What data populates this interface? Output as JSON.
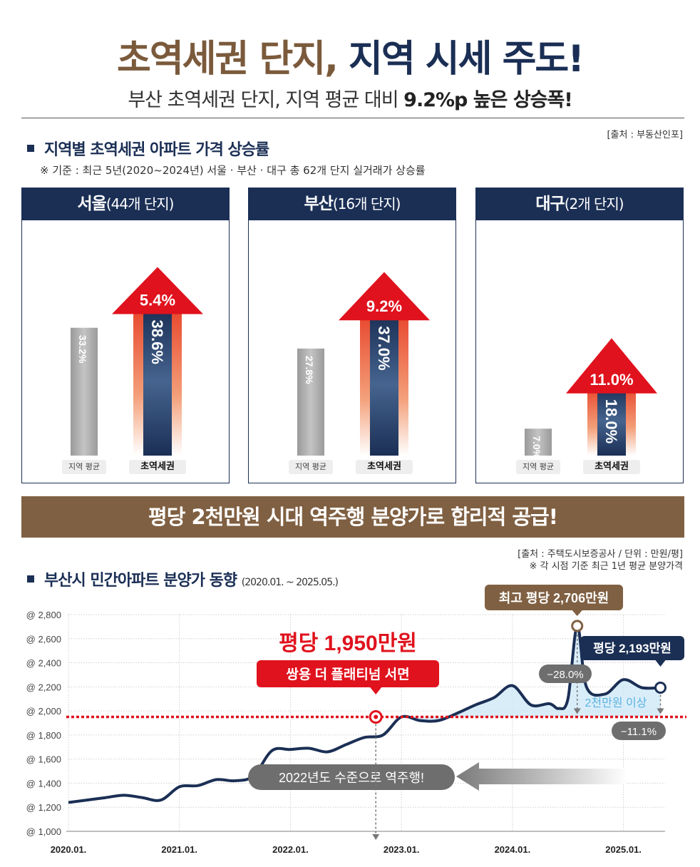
{
  "header": {
    "title_part1": "초역세권 단지,",
    "title_part2": "지역 시세 주도!",
    "subtitle_prefix": "부산 초역세권 단지, 지역 평균 대비 ",
    "subtitle_highlight": "9.2%p 높은 상승폭!"
  },
  "section1": {
    "source": "[출처 : 부동산인포]",
    "title": "지역별 초역세권 아파트 가격 상승률",
    "criteria": "※ 기준 : 최근 5년(2020~2024년) 서울 · 부산 · 대구 총 62개 단지 실거래가 상승률"
  },
  "panels": [
    {
      "region": "서울",
      "count": "(44개 단지)",
      "avg_label": "지역 평균",
      "station_label": "초역세권",
      "avg_value": 33.2,
      "station_value": 38.6,
      "avg_text": "33.2%",
      "station_text": "38.6%",
      "diff_text": "5.4%"
    },
    {
      "region": "부산",
      "count": "(16개 단지)",
      "avg_label": "지역 평균",
      "station_label": "초역세권",
      "avg_value": 27.8,
      "station_value": 37.0,
      "avg_text": "27.8%",
      "station_text": "37.0%",
      "diff_text": "9.2%"
    },
    {
      "region": "대구",
      "count": "(2개 단지)",
      "avg_label": "지역 평균",
      "station_label": "초역세권",
      "avg_value": 7.0,
      "station_value": 18.0,
      "avg_text": "7.0%",
      "station_text": "18.0%",
      "diff_text": "11.0%"
    }
  ],
  "banner": {
    "text": "평당 2천만원 시대 역주행 분양가로 합리적 공급!"
  },
  "section2": {
    "source_line1": "[출처 : 주택도시보증공사 / 단위 : 만원/평]",
    "source_line2": "※ 각 시점 기준 최근 1년 평균 분양가격",
    "title": "부산시 민간아파트 분양가 동향",
    "period": "(2020.01. ~ 2025.05.)"
  },
  "colors": {
    "navy": "#1b2f55",
    "brown": "#806042",
    "red": "#e0121d",
    "gray": "#8c8c8c",
    "lightblue": "#cfe8f8"
  },
  "chart_data": {
    "type": "line",
    "y_tick_prefix": "@",
    "ylim": [
      1000,
      2800
    ],
    "yticks": [
      1000,
      1200,
      1400,
      1600,
      1800,
      2000,
      2200,
      2400,
      2600,
      2800
    ],
    "ytick_labels": [
      "@ 1,000",
      "@ 1,200",
      "@ 1,400",
      "@ 1,600",
      "@ 1,800",
      "@ 2,000",
      "@ 2,200",
      "@ 2,400",
      "@ 2,600",
      "@ 2,800"
    ],
    "xticks": [
      "2020.01.",
      "2021.01.",
      "2022.01.",
      "2023.01.",
      "2024.01.",
      "2025.01."
    ],
    "series": [
      {
        "x": [
          "2020.01.",
          "2020.03.",
          "2020.05.",
          "2020.07.",
          "2020.09.",
          "2020.11.",
          "2021.01.",
          "2021.03.",
          "2021.05.",
          "2021.07.",
          "2021.09.",
          "2021.11.",
          "2022.01.",
          "2022.03.",
          "2022.05.",
          "2022.07.",
          "2022.09.",
          "2022.11.",
          "2023.01.",
          "2023.03.",
          "2023.05.",
          "2023.07.",
          "2023.09.",
          "2023.11.",
          "2024.01.",
          "2024.03.",
          "2024.05.",
          "2024.06.",
          "2024.07.",
          "2024.08.",
          "2024.09.",
          "2024.11.",
          "2025.01.",
          "2025.03.",
          "2025.05."
        ],
        "values": [
          1240,
          1260,
          1280,
          1300,
          1280,
          1260,
          1370,
          1380,
          1430,
          1420,
          1460,
          1670,
          1680,
          1690,
          1660,
          1720,
          1780,
          1800,
          1950,
          1920,
          1920,
          1980,
          2050,
          2110,
          2210,
          2050,
          2060,
          2020,
          2100,
          2706,
          2200,
          2140,
          2260,
          2193,
          2193
        ]
      }
    ],
    "baseline": 1950,
    "annotations": {
      "point1_title": "평당 1,950만원",
      "point1_name": "쌍용 더 플래티넘 서면",
      "peak": "최고 평당 2,706만원",
      "current": "평당 2,193만원",
      "diff_peak": "−28.0%",
      "diff_base": "−11.1%",
      "zone": "2천만원 이상",
      "reverse": "2022년도 수준으로 역주행!"
    }
  }
}
